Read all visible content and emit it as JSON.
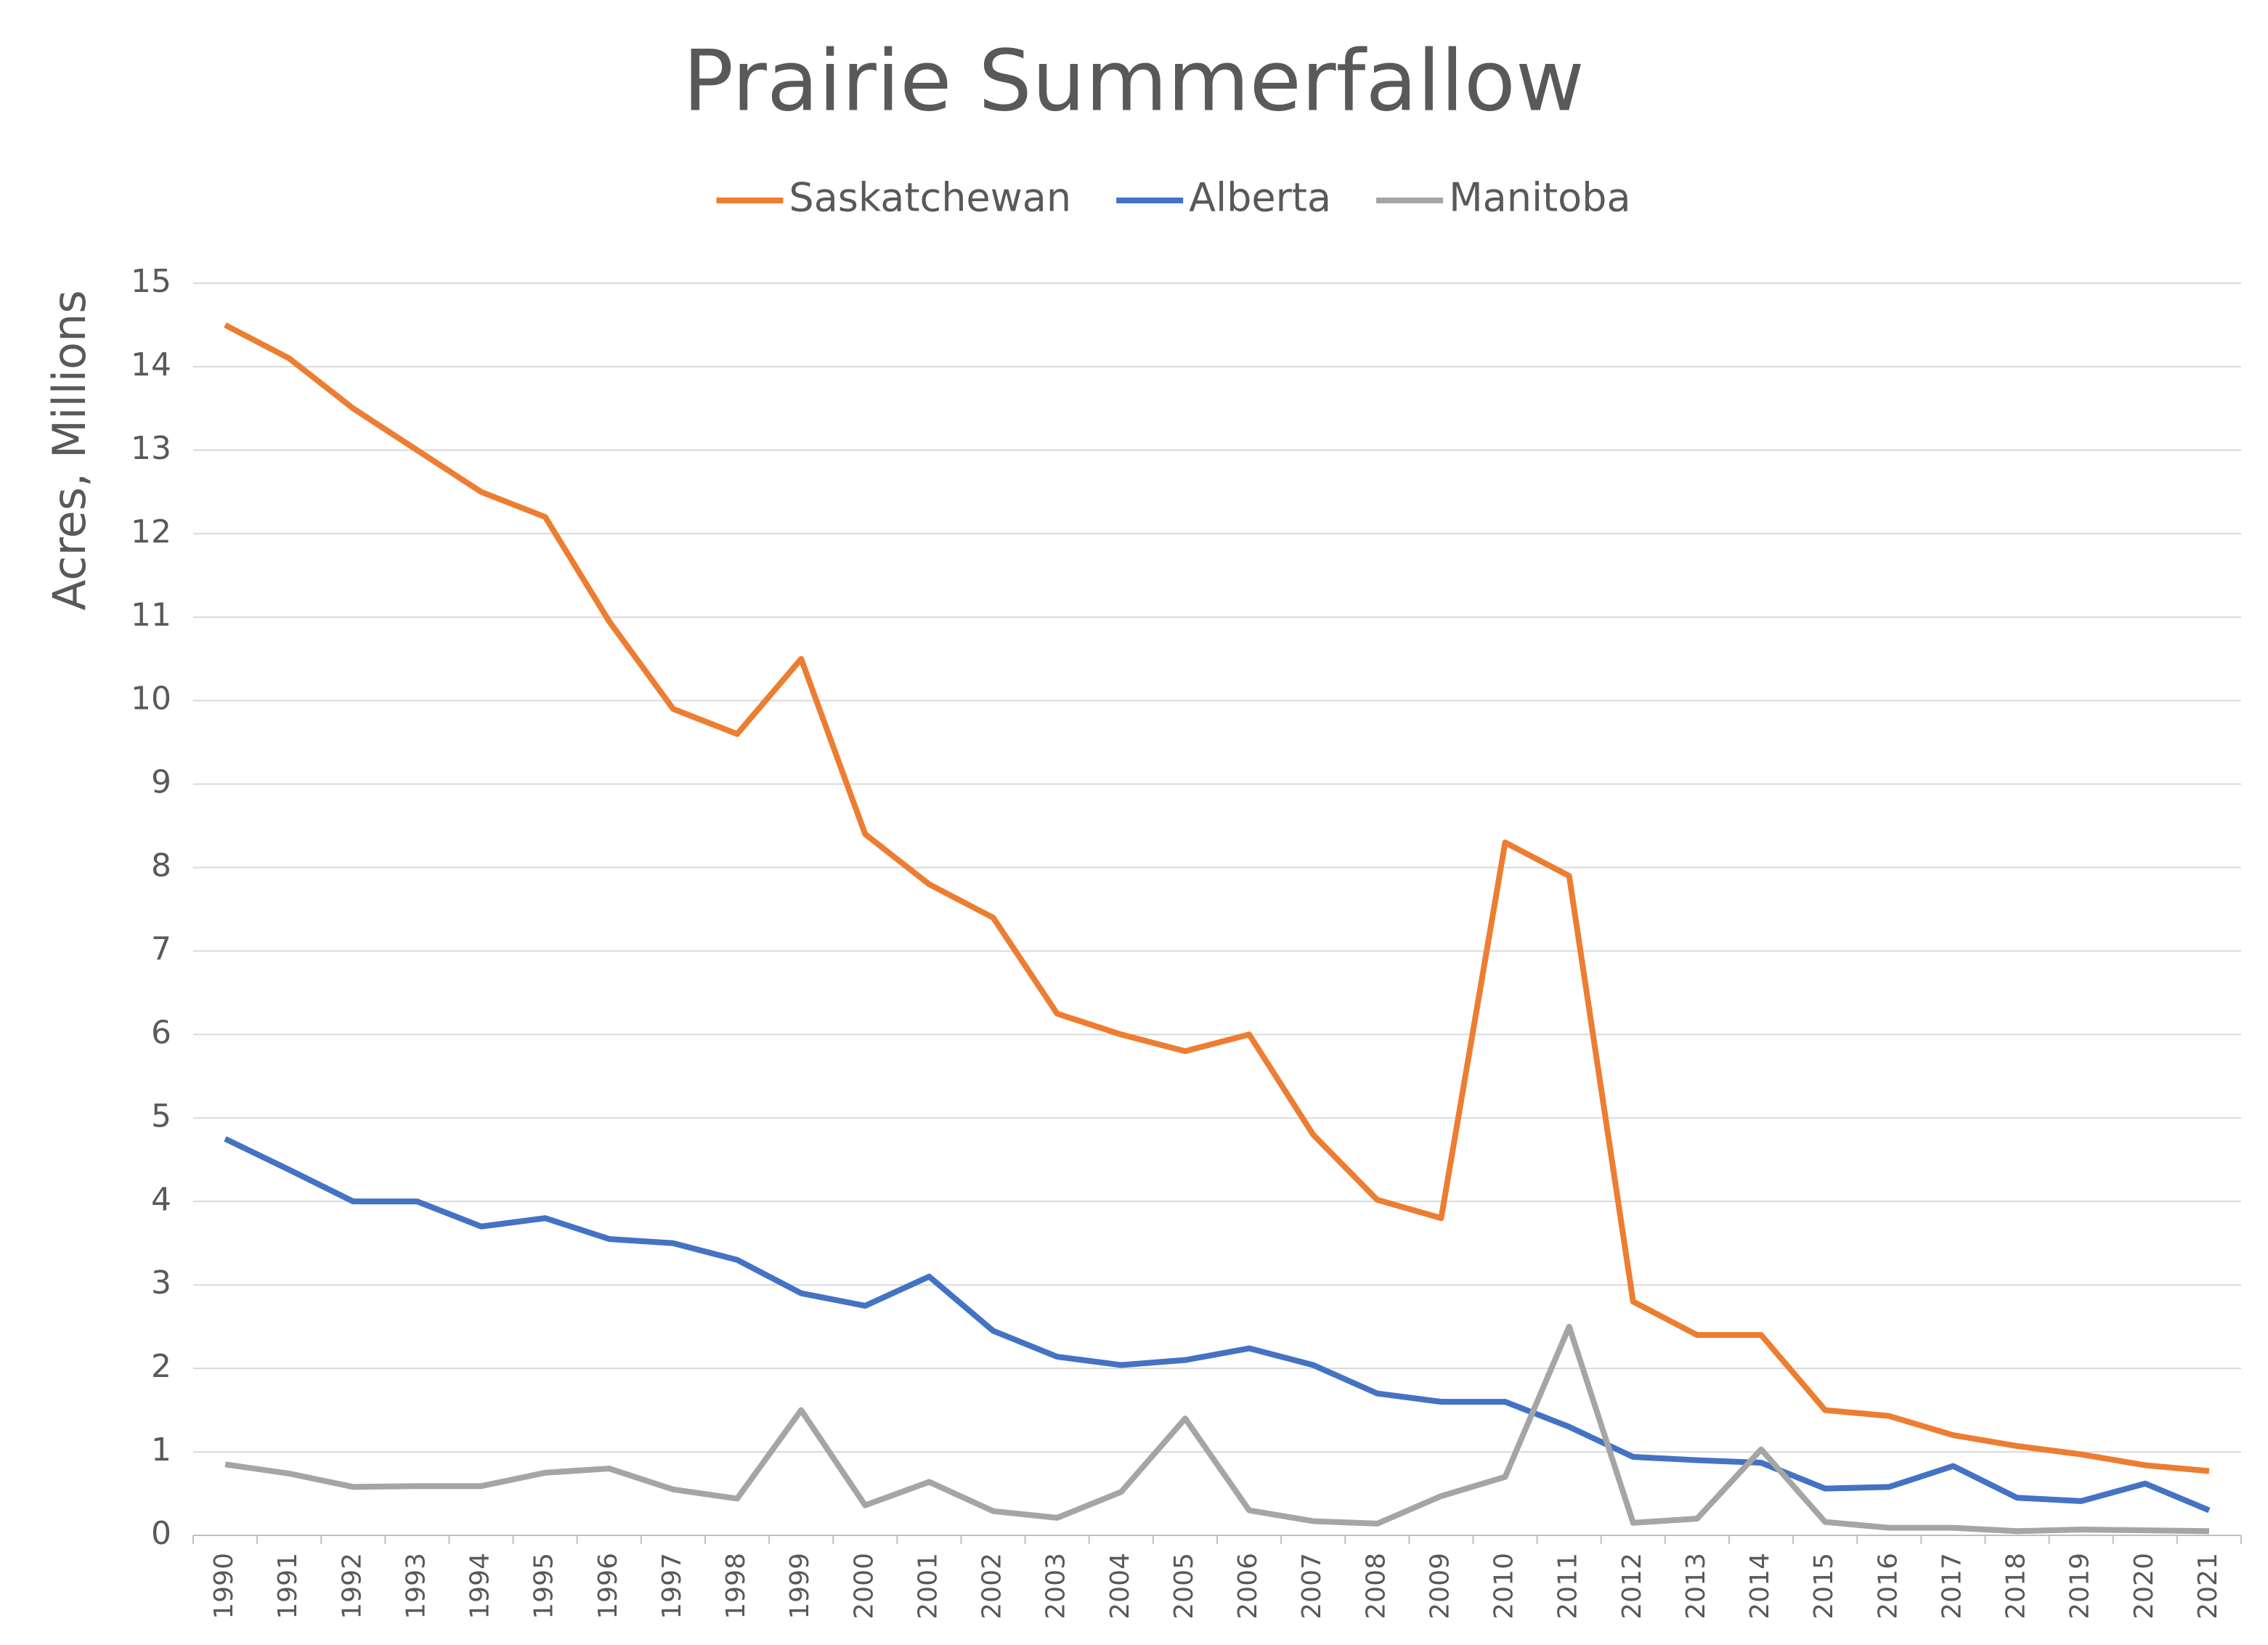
{
  "chart_data": {
    "type": "line",
    "title": "Prairie Summerfallow",
    "y_label": "Acres, Millions",
    "categories": [
      "1990",
      "1991",
      "1992",
      "1993",
      "1994",
      "1995",
      "1996",
      "1997",
      "1998",
      "1999",
      "2000",
      "2001",
      "2002",
      "2003",
      "2004",
      "2005",
      "2006",
      "2007",
      "2008",
      "2009",
      "2010",
      "2011",
      "2012",
      "2013",
      "2014",
      "2015",
      "2016",
      "2017",
      "2018",
      "2019",
      "2020",
      "2021"
    ],
    "series": [
      {
        "name": "Saskatchewan",
        "color": "#ed7d31",
        "values": [
          14.5,
          14.1,
          13.5,
          13.0,
          12.5,
          12.2,
          10.95,
          9.9,
          9.6,
          10.5,
          8.4,
          7.8,
          7.4,
          6.25,
          6.0,
          5.8,
          6.0,
          4.8,
          4.02,
          3.8,
          8.3,
          7.9,
          2.8,
          2.4,
          2.4,
          1.5,
          1.43,
          1.2,
          1.07,
          0.97,
          0.84,
          0.77
        ]
      },
      {
        "name": "Alberta",
        "color": "#4472c4",
        "values": [
          4.75,
          4.38,
          4.0,
          4.0,
          3.7,
          3.8,
          3.55,
          3.5,
          3.3,
          2.9,
          2.75,
          3.1,
          2.45,
          2.14,
          2.04,
          2.1,
          2.24,
          2.04,
          1.7,
          1.6,
          1.6,
          1.3,
          0.94,
          0.9,
          0.87,
          0.56,
          0.58,
          0.83,
          0.45,
          0.41,
          0.62,
          0.3
        ]
      },
      {
        "name": "Manitoba",
        "color": "#a5a5a5",
        "values": [
          0.85,
          0.74,
          0.58,
          0.59,
          0.59,
          0.75,
          0.8,
          0.55,
          0.44,
          1.5,
          0.36,
          0.64,
          0.29,
          0.21,
          0.52,
          1.4,
          0.3,
          0.17,
          0.14,
          0.47,
          0.7,
          2.5,
          0.15,
          0.2,
          1.03,
          0.16,
          0.09,
          0.09,
          0.05,
          0.07,
          0.06,
          0.05
        ]
      }
    ],
    "ylim": [
      0,
      15
    ],
    "yticks": [
      0,
      1,
      2,
      3,
      4,
      5,
      6,
      7,
      8,
      9,
      10,
      11,
      12,
      13,
      14,
      15
    ],
    "grid": true,
    "legend": "top"
  }
}
